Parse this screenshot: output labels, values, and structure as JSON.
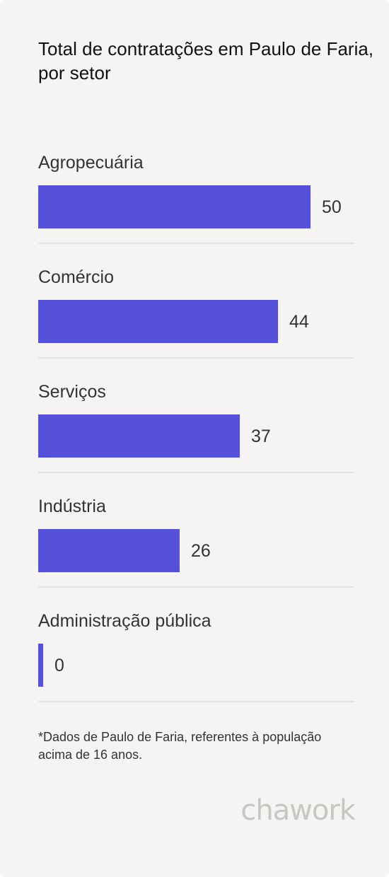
{
  "chart_data": {
    "type": "bar",
    "orientation": "horizontal",
    "title": "Total de contratações em Paulo de Faria, por setor",
    "categories": [
      "Agropecuária",
      "Comércio",
      "Serviços",
      "Indústria",
      "Administração pública"
    ],
    "values": [
      50,
      44,
      37,
      26,
      0
    ],
    "bar_color": "#5551d8",
    "xlim": [
      0,
      58
    ],
    "grid": false,
    "legend": "none"
  },
  "footnote": "*Dados de Paulo de Faria, referentes à população acima de 16 anos.",
  "brand": {
    "name": "chawork"
  }
}
